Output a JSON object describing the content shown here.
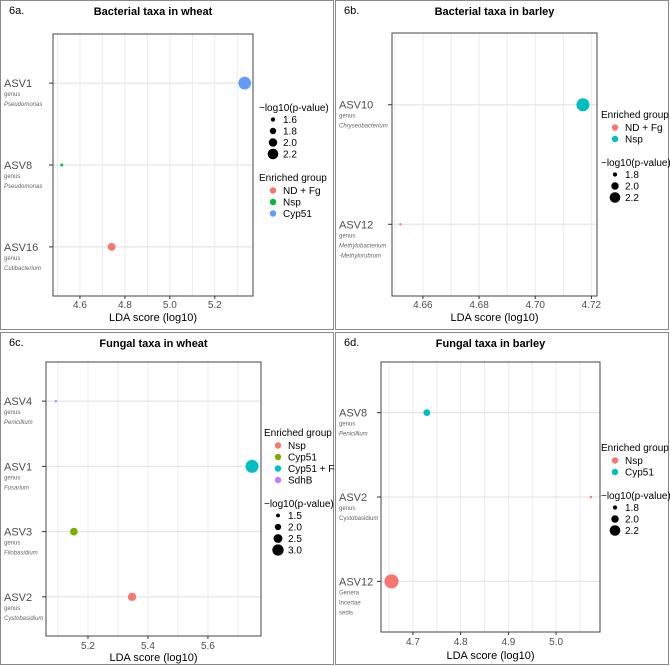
{
  "chart_data": [
    {
      "type": "scatter",
      "tag": "6a.",
      "title": "Bacterial taxa in wheat",
      "xlabel": "LDA score (log10)",
      "xlim": [
        4.48,
        5.37
      ],
      "xticks": [
        4.6,
        4.8,
        5.0,
        5.2
      ],
      "xtick_labels": [
        "4.6",
        "4.8",
        "5.0",
        "5.2"
      ],
      "categories": [
        {
          "name": "ASV1",
          "sub": [
            "genus",
            "Pseudomonas"
          ],
          "italic": true
        },
        {
          "name": "ASV8",
          "sub": [
            "genus",
            "Pseudomonas"
          ],
          "italic": true
        },
        {
          "name": "ASV16",
          "sub": [
            "genus",
            "Cutibacterium"
          ],
          "italic": true
        }
      ],
      "points": [
        {
          "category": "ASV1",
          "lda": 5.333,
          "neglog10p": 2.25,
          "group": "Cyp51"
        },
        {
          "category": "ASV8",
          "lda": 4.519,
          "neglog10p": 1.55,
          "group": "Nsp"
        },
        {
          "category": "ASV16",
          "lda": 4.741,
          "neglog10p": 1.9,
          "group": "ND + Fg"
        }
      ],
      "size_legend": {
        "title": "−log10(p-value)",
        "values": [
          1.6,
          1.8,
          2.0,
          2.2
        ],
        "labels": [
          "1.6",
          "1.8",
          "2.0",
          "2.2"
        ]
      },
      "color_legend": {
        "title": "Enriched group",
        "groups": [
          "ND + Fg",
          "Nsp",
          "Cyp51"
        ],
        "colors": [
          "#F8766D",
          "#00BA38",
          "#619CFF"
        ]
      },
      "legend_order": [
        "size",
        "color"
      ],
      "legend_placement": "right"
    },
    {
      "type": "scatter",
      "tag": "6b.",
      "title": "Bacterial taxa in barley",
      "xlabel": "LDA score (log10)",
      "xlim": [
        4.649,
        4.722
      ],
      "xticks": [
        4.66,
        4.68,
        4.7,
        4.72
      ],
      "xtick_labels": [
        "4.66",
        "4.68",
        "4.70",
        "4.72"
      ],
      "categories": [
        {
          "name": "ASV10",
          "sub": [
            "genus",
            "Chryseobacterium"
          ],
          "italic": true
        },
        {
          "name": "ASV12",
          "sub": [
            "genus",
            "Methylobacterium",
            "-Methylorubrum"
          ],
          "italic": true
        }
      ],
      "points": [
        {
          "category": "ASV10",
          "lda": 4.717,
          "neglog10p": 2.25,
          "group": "Nsp"
        },
        {
          "category": "ASV12",
          "lda": 4.652,
          "neglog10p": 1.7,
          "group": "ND + Fg"
        }
      ],
      "size_legend": {
        "title": "−log10(p-value)",
        "values": [
          1.8,
          2.0,
          2.2
        ],
        "labels": [
          "1.8",
          "2.0",
          "2.2"
        ]
      },
      "color_legend": {
        "title": "Enriched group",
        "groups": [
          "ND + Fg",
          "Nsp"
        ],
        "colors": [
          "#F8766D",
          "#00BFC4"
        ]
      },
      "legend_order": [
        "color",
        "size"
      ],
      "legend_placement": "right"
    },
    {
      "type": "scatter",
      "tag": "6c.",
      "title": "Fungal taxa in wheat",
      "xlabel": "LDA score (log10)",
      "xlim": [
        5.06,
        5.777
      ],
      "xticks": [
        5.2,
        5.4,
        5.6
      ],
      "xtick_labels": [
        "5.2",
        "5.4",
        "5.6"
      ],
      "categories": [
        {
          "name": "ASV4",
          "sub": [
            "genus",
            "Penicillium"
          ],
          "italic": true
        },
        {
          "name": "ASV1",
          "sub": [
            "genus",
            "Fusarium"
          ],
          "italic": true
        },
        {
          "name": "ASV3",
          "sub": [
            "genus",
            "Filobasidium"
          ],
          "italic": true
        },
        {
          "name": "ASV2",
          "sub": [
            "genus",
            "Cystobasidium"
          ],
          "italic": true
        }
      ],
      "points": [
        {
          "category": "ASV4",
          "lda": 5.093,
          "neglog10p": 1.3,
          "group": "SdhB"
        },
        {
          "category": "ASV1",
          "lda": 5.747,
          "neglog10p": 3.0,
          "group": "Cyp51 + Fg"
        },
        {
          "category": "ASV3",
          "lda": 5.153,
          "neglog10p": 2.2,
          "group": "Cyp51"
        },
        {
          "category": "ASV2",
          "lda": 5.347,
          "neglog10p": 2.3,
          "group": "Nsp"
        }
      ],
      "size_legend": {
        "title": "−log10(p-value)",
        "values": [
          1.5,
          2.0,
          2.5,
          3.0
        ],
        "labels": [
          "1.5",
          "2.0",
          "2.5",
          "3.0"
        ]
      },
      "color_legend": {
        "title": "Enriched group",
        "groups": [
          "Nsp",
          "Cyp51",
          "Cyp51 + Fg",
          "SdhB"
        ],
        "colors": [
          "#F8766D",
          "#7CAE00",
          "#00BFC4",
          "#C77CFF"
        ]
      },
      "legend_order": [
        "color",
        "size"
      ],
      "legend_placement": "right"
    },
    {
      "type": "scatter",
      "tag": "6d.",
      "title": "Fungal taxa in barley",
      "xlabel": "LDA score (log10)",
      "xlim": [
        4.633,
        5.092
      ],
      "xticks": [
        4.7,
        4.8,
        4.9,
        5.0
      ],
      "xtick_labels": [
        "4.7",
        "4.8",
        "4.9",
        "5.0"
      ],
      "categories": [
        {
          "name": "ASV8",
          "sub": [
            "genus",
            "Penicillium"
          ],
          "italic": true
        },
        {
          "name": "ASV2",
          "sub": [
            "genus",
            "Cystobasidium"
          ],
          "italic": false
        },
        {
          "name": "ASV12",
          "sub": [
            "Genera",
            "Incertae",
            "sedis"
          ],
          "italic": false
        }
      ],
      "points": [
        {
          "category": "ASV8",
          "lda": 4.729,
          "neglog10p": 1.95,
          "group": "Cyp51"
        },
        {
          "category": "ASV2",
          "lda": 5.073,
          "neglog10p": 1.7,
          "group": "Nsp"
        },
        {
          "category": "ASV12",
          "lda": 4.655,
          "neglog10p": 2.3,
          "group": "Nsp"
        }
      ],
      "size_legend": {
        "title": "−log10(p-value)",
        "values": [
          1.8,
          2.0,
          2.2
        ],
        "labels": [
          "1.8",
          "2.0",
          "2.2"
        ]
      },
      "color_legend": {
        "title": "Enriched group",
        "groups": [
          "Nsp",
          "Cyp51"
        ],
        "colors": [
          "#F8766D",
          "#00BFC4"
        ]
      },
      "legend_order": [
        "color",
        "size"
      ],
      "legend_placement": "right"
    }
  ]
}
